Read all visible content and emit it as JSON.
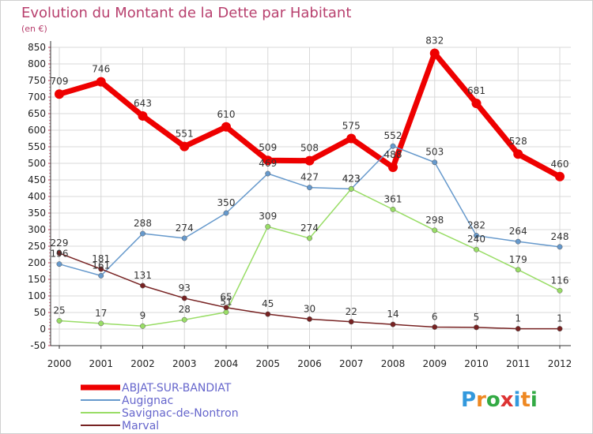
{
  "title": "Evolution du Montant de la Dette par Habitant",
  "subtitle": "(en €)",
  "logo": "Proxiti",
  "colors": {
    "title": "#b8406e",
    "grid": "#d8d8d8",
    "axis": "#333333"
  },
  "chart_data": {
    "type": "line",
    "title": "Evolution du Montant de la Dette par Habitant",
    "subtitle": "(en €)",
    "xlabel": "",
    "ylabel": "",
    "x": [
      "2000",
      "2001",
      "2002",
      "2003",
      "2004",
      "2005",
      "2006",
      "2007",
      "2008",
      "2009",
      "2010",
      "2011",
      "2012"
    ],
    "ylim": [
      -50,
      850
    ],
    "yticks": [
      -50,
      0,
      50,
      100,
      150,
      200,
      250,
      300,
      350,
      400,
      450,
      500,
      550,
      600,
      650,
      700,
      750,
      800,
      850
    ],
    "grid": true,
    "legend_position": "bottom-left",
    "series": [
      {
        "name": "ABJAT-SUR-BANDIAT",
        "color": "#ee0000",
        "width": 7,
        "values": [
          709,
          746,
          643,
          551,
          610,
          509,
          508,
          575,
          488,
          832,
          681,
          528,
          460
        ]
      },
      {
        "name": "Augignac",
        "color": "#6699cc",
        "width": 1.5,
        "values": [
          196,
          161,
          288,
          274,
          350,
          469,
          427,
          423,
          552,
          503,
          282,
          264,
          248
        ]
      },
      {
        "name": "Savignac-de-Nontron",
        "color": "#99dd66",
        "width": 1.5,
        "values": [
          25,
          17,
          9,
          28,
          51,
          309,
          274,
          423,
          361,
          298,
          240,
          179,
          116
        ]
      },
      {
        "name": "Marval",
        "color": "#772222",
        "width": 1.5,
        "values": [
          229,
          181,
          131,
          93,
          65,
          45,
          30,
          22,
          14,
          6,
          5,
          1,
          1
        ]
      }
    ]
  }
}
